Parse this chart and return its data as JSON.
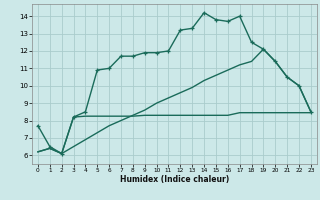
{
  "background_color": "#cce8e8",
  "grid_color": "#aacccc",
  "line_color": "#1a6b5a",
  "xlabel": "Humidex (Indice chaleur)",
  "xlim": [
    -0.5,
    23.5
  ],
  "ylim": [
    5.5,
    14.7
  ],
  "yticks": [
    6,
    7,
    8,
    9,
    10,
    11,
    12,
    13,
    14
  ],
  "xticks": [
    0,
    1,
    2,
    3,
    4,
    5,
    6,
    7,
    8,
    9,
    10,
    11,
    12,
    13,
    14,
    15,
    16,
    17,
    18,
    19,
    20,
    21,
    22,
    23
  ],
  "line1_x": [
    0,
    1,
    2,
    3,
    4,
    5,
    6,
    7,
    8,
    9,
    10,
    11,
    12,
    13,
    14,
    15,
    16,
    17,
    18,
    19,
    20,
    21,
    22,
    23
  ],
  "line1_y": [
    7.7,
    6.5,
    6.1,
    8.2,
    8.5,
    10.9,
    11.0,
    11.7,
    11.7,
    11.9,
    11.9,
    12.0,
    13.2,
    13.3,
    14.2,
    13.8,
    13.7,
    14.0,
    12.5,
    12.1,
    11.4,
    10.5,
    10.0,
    8.5
  ],
  "line2_x": [
    0,
    1,
    2,
    3,
    4,
    5,
    6,
    7,
    8,
    9,
    10,
    11,
    12,
    13,
    14,
    15,
    16,
    17,
    18,
    19,
    20,
    21,
    22,
    23
  ],
  "line2_y": [
    6.2,
    6.4,
    6.1,
    6.5,
    6.9,
    7.3,
    7.7,
    8.0,
    8.3,
    8.6,
    9.0,
    9.3,
    9.6,
    9.9,
    10.3,
    10.6,
    10.9,
    11.2,
    11.4,
    12.1,
    11.4,
    10.5,
    10.0,
    8.5
  ],
  "line3_x": [
    0,
    1,
    2,
    3,
    4,
    5,
    6,
    7,
    8,
    9,
    10,
    11,
    12,
    13,
    14,
    15,
    16,
    17,
    18,
    19,
    20,
    21,
    22,
    23
  ],
  "line3_y": [
    6.2,
    6.4,
    6.1,
    8.2,
    8.25,
    8.25,
    8.25,
    8.25,
    8.25,
    8.3,
    8.3,
    8.3,
    8.3,
    8.3,
    8.3,
    8.3,
    8.3,
    8.45,
    8.45,
    8.45,
    8.45,
    8.45,
    8.45,
    8.45
  ],
  "line_linewidth": 1.0,
  "marker": "+"
}
